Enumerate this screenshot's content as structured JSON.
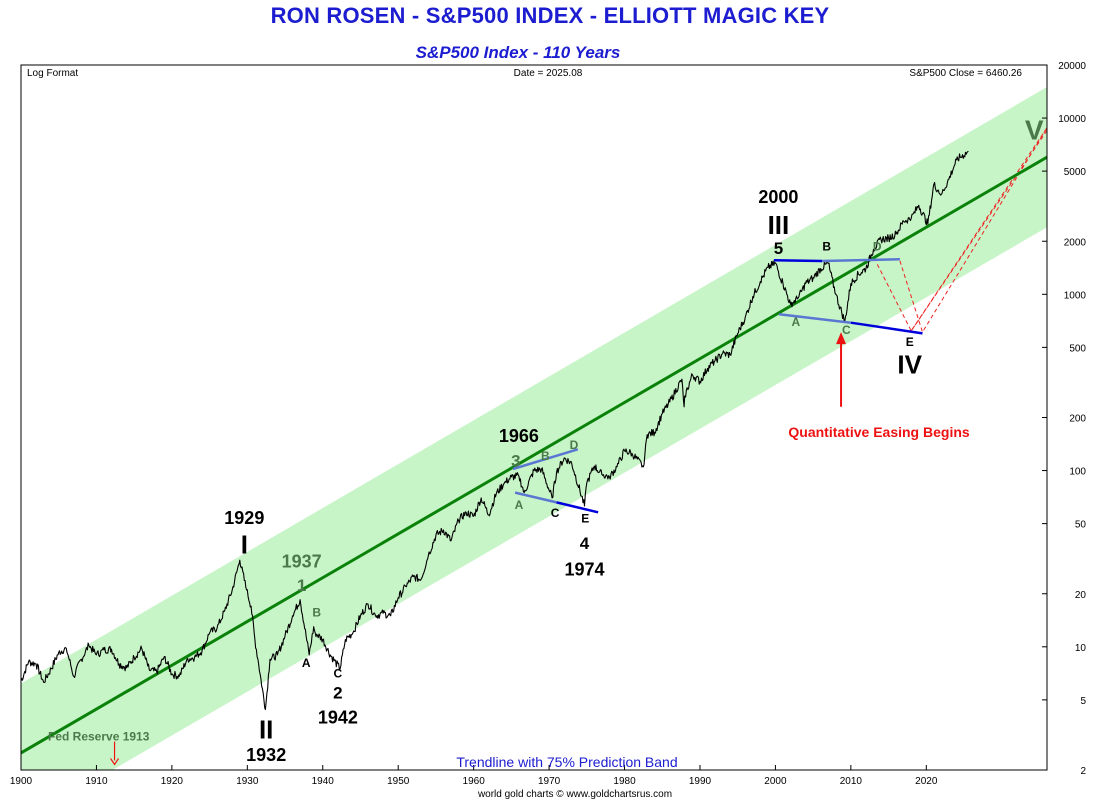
{
  "header": {
    "title": "RON ROSEN - S&P500 INDEX - ELLIOTT MAGIC KEY",
    "subtitle": "S&P500 Index - 110 Years"
  },
  "chart_data": {
    "type": "line",
    "scale": "log",
    "xlim": [
      1900,
      2036
    ],
    "ylim": [
      2,
      20000
    ],
    "x_ticks": [
      1900,
      1910,
      1920,
      1930,
      1940,
      1950,
      1960,
      1970,
      1980,
      1990,
      2000,
      2010,
      2020
    ],
    "y_ticks": [
      20000,
      10000,
      5000,
      2000,
      1000,
      500,
      200,
      100,
      50,
      20,
      10,
      5,
      2
    ],
    "info_left": "Log Format",
    "info_center": "Date = 2025.08",
    "info_right": "S&P500 Close = 6460.26",
    "band_label": "Trendline with 75% Prediction Band",
    "credit": "world gold charts © www.goldchartsrus.com",
    "colors": {
      "price": "#000000",
      "trend": "#0a820a",
      "band": "#c8f5c8",
      "wave_line": "#0000dd",
      "wave_line_light": "#5a78d2",
      "projection": "#ee2222",
      "grey_label": "#4a7a4a",
      "qe": "#ee1111",
      "fed": "#4a7a4a"
    },
    "trendline": {
      "start": [
        1900,
        2.5
      ],
      "end": [
        2036,
        6000
      ]
    },
    "band": {
      "upper": {
        "start": [
          1900,
          6.2
        ],
        "end": [
          2036,
          15000
        ]
      },
      "lower": {
        "start": [
          1900,
          1.0
        ],
        "end": [
          2036,
          2400
        ]
      }
    },
    "series": [
      {
        "values": [
          [
            1900,
            6.4
          ],
          [
            1901,
            8.2
          ],
          [
            1902,
            8.0
          ],
          [
            1903,
            6.3
          ],
          [
            1904,
            7.5
          ],
          [
            1905,
            9.3
          ],
          [
            1906,
            9.8
          ],
          [
            1907,
            6.8
          ],
          [
            1908,
            8.5
          ],
          [
            1909,
            10.2
          ],
          [
            1910,
            9.0
          ],
          [
            1911,
            9.6
          ],
          [
            1912,
            9.7
          ],
          [
            1913,
            8.0
          ],
          [
            1914,
            7.6
          ],
          [
            1915,
            8.7
          ],
          [
            1916,
            9.8
          ],
          [
            1917,
            7.4
          ],
          [
            1918,
            7.2
          ],
          [
            1919,
            8.8
          ],
          [
            1920,
            7.0
          ],
          [
            1921,
            6.8
          ],
          [
            1922,
            8.5
          ],
          [
            1923,
            8.7
          ],
          [
            1924,
            9.5
          ],
          [
            1925,
            12.0
          ],
          [
            1926,
            12.8
          ],
          [
            1927,
            16.0
          ],
          [
            1928,
            21.0
          ],
          [
            1929,
            31.0
          ],
          [
            1929.9,
            21.0
          ],
          [
            1930.5,
            17.0
          ],
          [
            1931,
            11.0
          ],
          [
            1931.5,
            8.0
          ],
          [
            1932.4,
            4.4
          ],
          [
            1933,
            8.5
          ],
          [
            1934,
            9.0
          ],
          [
            1935,
            11.5
          ],
          [
            1936,
            15.0
          ],
          [
            1937,
            18.5
          ],
          [
            1938.2,
            9.0
          ],
          [
            1938.8,
            13.0
          ],
          [
            1939,
            12.0
          ],
          [
            1940,
            11.0
          ],
          [
            1941,
            9.0
          ],
          [
            1942.3,
            7.5
          ],
          [
            1943,
            11.0
          ],
          [
            1944,
            12.0
          ],
          [
            1945,
            15.0
          ],
          [
            1946,
            17.5
          ],
          [
            1947,
            15.0
          ],
          [
            1948,
            15.5
          ],
          [
            1949,
            15.0
          ],
          [
            1950,
            19.0
          ],
          [
            1951,
            22.0
          ],
          [
            1952,
            25.0
          ],
          [
            1953,
            24.0
          ],
          [
            1954,
            33.0
          ],
          [
            1955,
            43.0
          ],
          [
            1956,
            46.0
          ],
          [
            1957,
            40.0
          ],
          [
            1958,
            52.0
          ],
          [
            1959,
            58.0
          ],
          [
            1960,
            55.0
          ],
          [
            1961,
            70.0
          ],
          [
            1962,
            56.0
          ],
          [
            1963,
            74.0
          ],
          [
            1964,
            84.0
          ],
          [
            1965,
            92.0
          ],
          [
            1966,
            93.0
          ],
          [
            1966.7,
            75.0
          ],
          [
            1968,
            100.0
          ],
          [
            1969,
            102.0
          ],
          [
            1970.4,
            70.0
          ],
          [
            1971,
            98.0
          ],
          [
            1972,
            118.0
          ],
          [
            1973,
            110.0
          ],
          [
            1974.7,
            63.0
          ],
          [
            1975,
            85.0
          ],
          [
            1976,
            106.0
          ],
          [
            1977,
            95.0
          ],
          [
            1978,
            92.0
          ],
          [
            1979,
            105.0
          ],
          [
            1980,
            130.0
          ],
          [
            1981,
            125.0
          ],
          [
            1982.5,
            105.0
          ],
          [
            1983,
            160.0
          ],
          [
            1984,
            165.0
          ],
          [
            1985,
            210.0
          ],
          [
            1986,
            245.0
          ],
          [
            1987.6,
            330.0
          ],
          [
            1987.9,
            230.0
          ],
          [
            1988,
            265.0
          ],
          [
            1989,
            350.0
          ],
          [
            1990,
            320.0
          ],
          [
            1991,
            380.0
          ],
          [
            1992,
            420.0
          ],
          [
            1993,
            460.0
          ],
          [
            1994,
            455.0
          ],
          [
            1995,
            600.0
          ],
          [
            1996,
            740.0
          ],
          [
            1997,
            970.0
          ],
          [
            1998,
            1180.0
          ],
          [
            1999,
            1420.0
          ],
          [
            2000,
            1500.0
          ],
          [
            2001,
            1150.0
          ],
          [
            2002,
            880.0
          ],
          [
            2003,
            950.0
          ],
          [
            2004,
            1150.0
          ],
          [
            2005,
            1240.0
          ],
          [
            2006,
            1400.0
          ],
          [
            2007,
            1500.0
          ],
          [
            2008,
            1000.0
          ],
          [
            2009.2,
            700.0
          ],
          [
            2010,
            1150.0
          ],
          [
            2011,
            1300.0
          ],
          [
            2012,
            1400.0
          ],
          [
            2013,
            1800.0
          ],
          [
            2014,
            2050.0
          ],
          [
            2015,
            2080.0
          ],
          [
            2016,
            2200.0
          ],
          [
            2017,
            2600.0
          ],
          [
            2018,
            2700.0
          ],
          [
            2019,
            3200.0
          ],
          [
            2020.2,
            2500.0
          ],
          [
            2021,
            4200.0
          ],
          [
            2022,
            3700.0
          ],
          [
            2023,
            4500.0
          ],
          [
            2024,
            5800.0
          ],
          [
            2025.6,
            6460.0
          ]
        ]
      }
    ],
    "wave_lines": [
      {
        "style": "dark",
        "points": [
          [
            1999.8,
            1560
          ],
          [
            2006.2,
            1545
          ]
        ]
      },
      {
        "style": "light",
        "points": [
          [
            2006.2,
            1545
          ],
          [
            2016.5,
            1580
          ]
        ]
      },
      {
        "style": "light",
        "points": [
          [
            2000.5,
            770
          ],
          [
            2010,
            690
          ]
        ]
      },
      {
        "style": "dark",
        "points": [
          [
            2010,
            690
          ],
          [
            2019.5,
            600
          ]
        ]
      },
      {
        "style": "light",
        "points": [
          [
            1965.2,
            102
          ],
          [
            1973.8,
            132
          ]
        ]
      },
      {
        "style": "light",
        "points": [
          [
            1965.5,
            75
          ],
          [
            1971,
            66
          ]
        ]
      },
      {
        "style": "dark",
        "points": [
          [
            1971,
            66
          ],
          [
            1976.5,
            58
          ]
        ]
      }
    ],
    "projection_lines": [
      {
        "points": [
          [
            2013.5,
            1480
          ],
          [
            2018,
            620
          ],
          [
            2036,
            8800
          ]
        ]
      },
      {
        "points": [
          [
            2016.5,
            1550
          ],
          [
            2019.5,
            610
          ],
          [
            2036,
            8800
          ]
        ]
      },
      {
        "points": [
          [
            2018,
            620
          ],
          [
            2036,
            8500
          ]
        ]
      }
    ],
    "annotations": [
      {
        "text": "1929",
        "x": 1929.6,
        "y": 53,
        "style": "year"
      },
      {
        "text": "I",
        "x": 1929.6,
        "y": 37,
        "style": "roman"
      },
      {
        "text": "1937",
        "x": 1937.2,
        "y": 30,
        "style": "year-grey"
      },
      {
        "text": "1",
        "x": 1937.2,
        "y": 22,
        "style": "num-grey"
      },
      {
        "text": "B",
        "x": 1939.2,
        "y": 15.5,
        "style": "letter-grey"
      },
      {
        "text": "A",
        "x": 1937.8,
        "y": 8.0,
        "style": "letter"
      },
      {
        "text": "C",
        "x": 1942.0,
        "y": 7.0,
        "style": "letter"
      },
      {
        "text": "2",
        "x": 1942.0,
        "y": 5.4,
        "style": "num"
      },
      {
        "text": "1942",
        "x": 1942.0,
        "y": 3.9,
        "style": "year"
      },
      {
        "text": "II",
        "x": 1932.5,
        "y": 3.3,
        "style": "roman"
      },
      {
        "text": "1932",
        "x": 1932.5,
        "y": 2.4,
        "style": "year"
      },
      {
        "text": "1966",
        "x": 1966.0,
        "y": 155,
        "style": "year"
      },
      {
        "text": "3",
        "x": 1965.6,
        "y": 112,
        "style": "num-grey"
      },
      {
        "text": "B",
        "x": 1969.5,
        "y": 120,
        "style": "letter-grey"
      },
      {
        "text": "D",
        "x": 1973.3,
        "y": 138,
        "style": "letter-grey"
      },
      {
        "text": "A",
        "x": 1966.0,
        "y": 63,
        "style": "letter-grey"
      },
      {
        "text": "C",
        "x": 1970.8,
        "y": 57,
        "style": "letter"
      },
      {
        "text": "E",
        "x": 1974.8,
        "y": 53,
        "style": "letter"
      },
      {
        "text": "4",
        "x": 1974.7,
        "y": 38,
        "style": "num"
      },
      {
        "text": "1974",
        "x": 1974.7,
        "y": 27,
        "style": "year"
      },
      {
        "text": "2000",
        "x": 2000.4,
        "y": 3500,
        "style": "year"
      },
      {
        "text": "III",
        "x": 2000.4,
        "y": 2400,
        "style": "roman"
      },
      {
        "text": "5",
        "x": 2000.4,
        "y": 1800,
        "style": "num"
      },
      {
        "text": "B",
        "x": 2006.8,
        "y": 1850,
        "style": "letter"
      },
      {
        "text": "D",
        "x": 2013.5,
        "y": 1850,
        "style": "letter-grey"
      },
      {
        "text": "A",
        "x": 2002.7,
        "y": 690,
        "style": "letter-grey"
      },
      {
        "text": "C",
        "x": 2009.4,
        "y": 620,
        "style": "letter-grey"
      },
      {
        "text": "E",
        "x": 2017.8,
        "y": 530,
        "style": "letter"
      },
      {
        "text": "IV",
        "x": 2017.8,
        "y": 390,
        "style": "roman"
      },
      {
        "text": "V",
        "x": 2034.3,
        "y": 8300,
        "style": "roman-grey"
      }
    ],
    "qe": {
      "text": "Quantitative Easing Begins",
      "x": 2008.7,
      "y": 155,
      "arrow_from": 230,
      "arrow_to": 610
    },
    "fed": {
      "text": "Fed Reserve 1913",
      "x": 1910.3,
      "y": 2.95,
      "arrow_x": 1912.4,
      "arrow_from": 2.9,
      "arrow_to": 2.15
    }
  }
}
